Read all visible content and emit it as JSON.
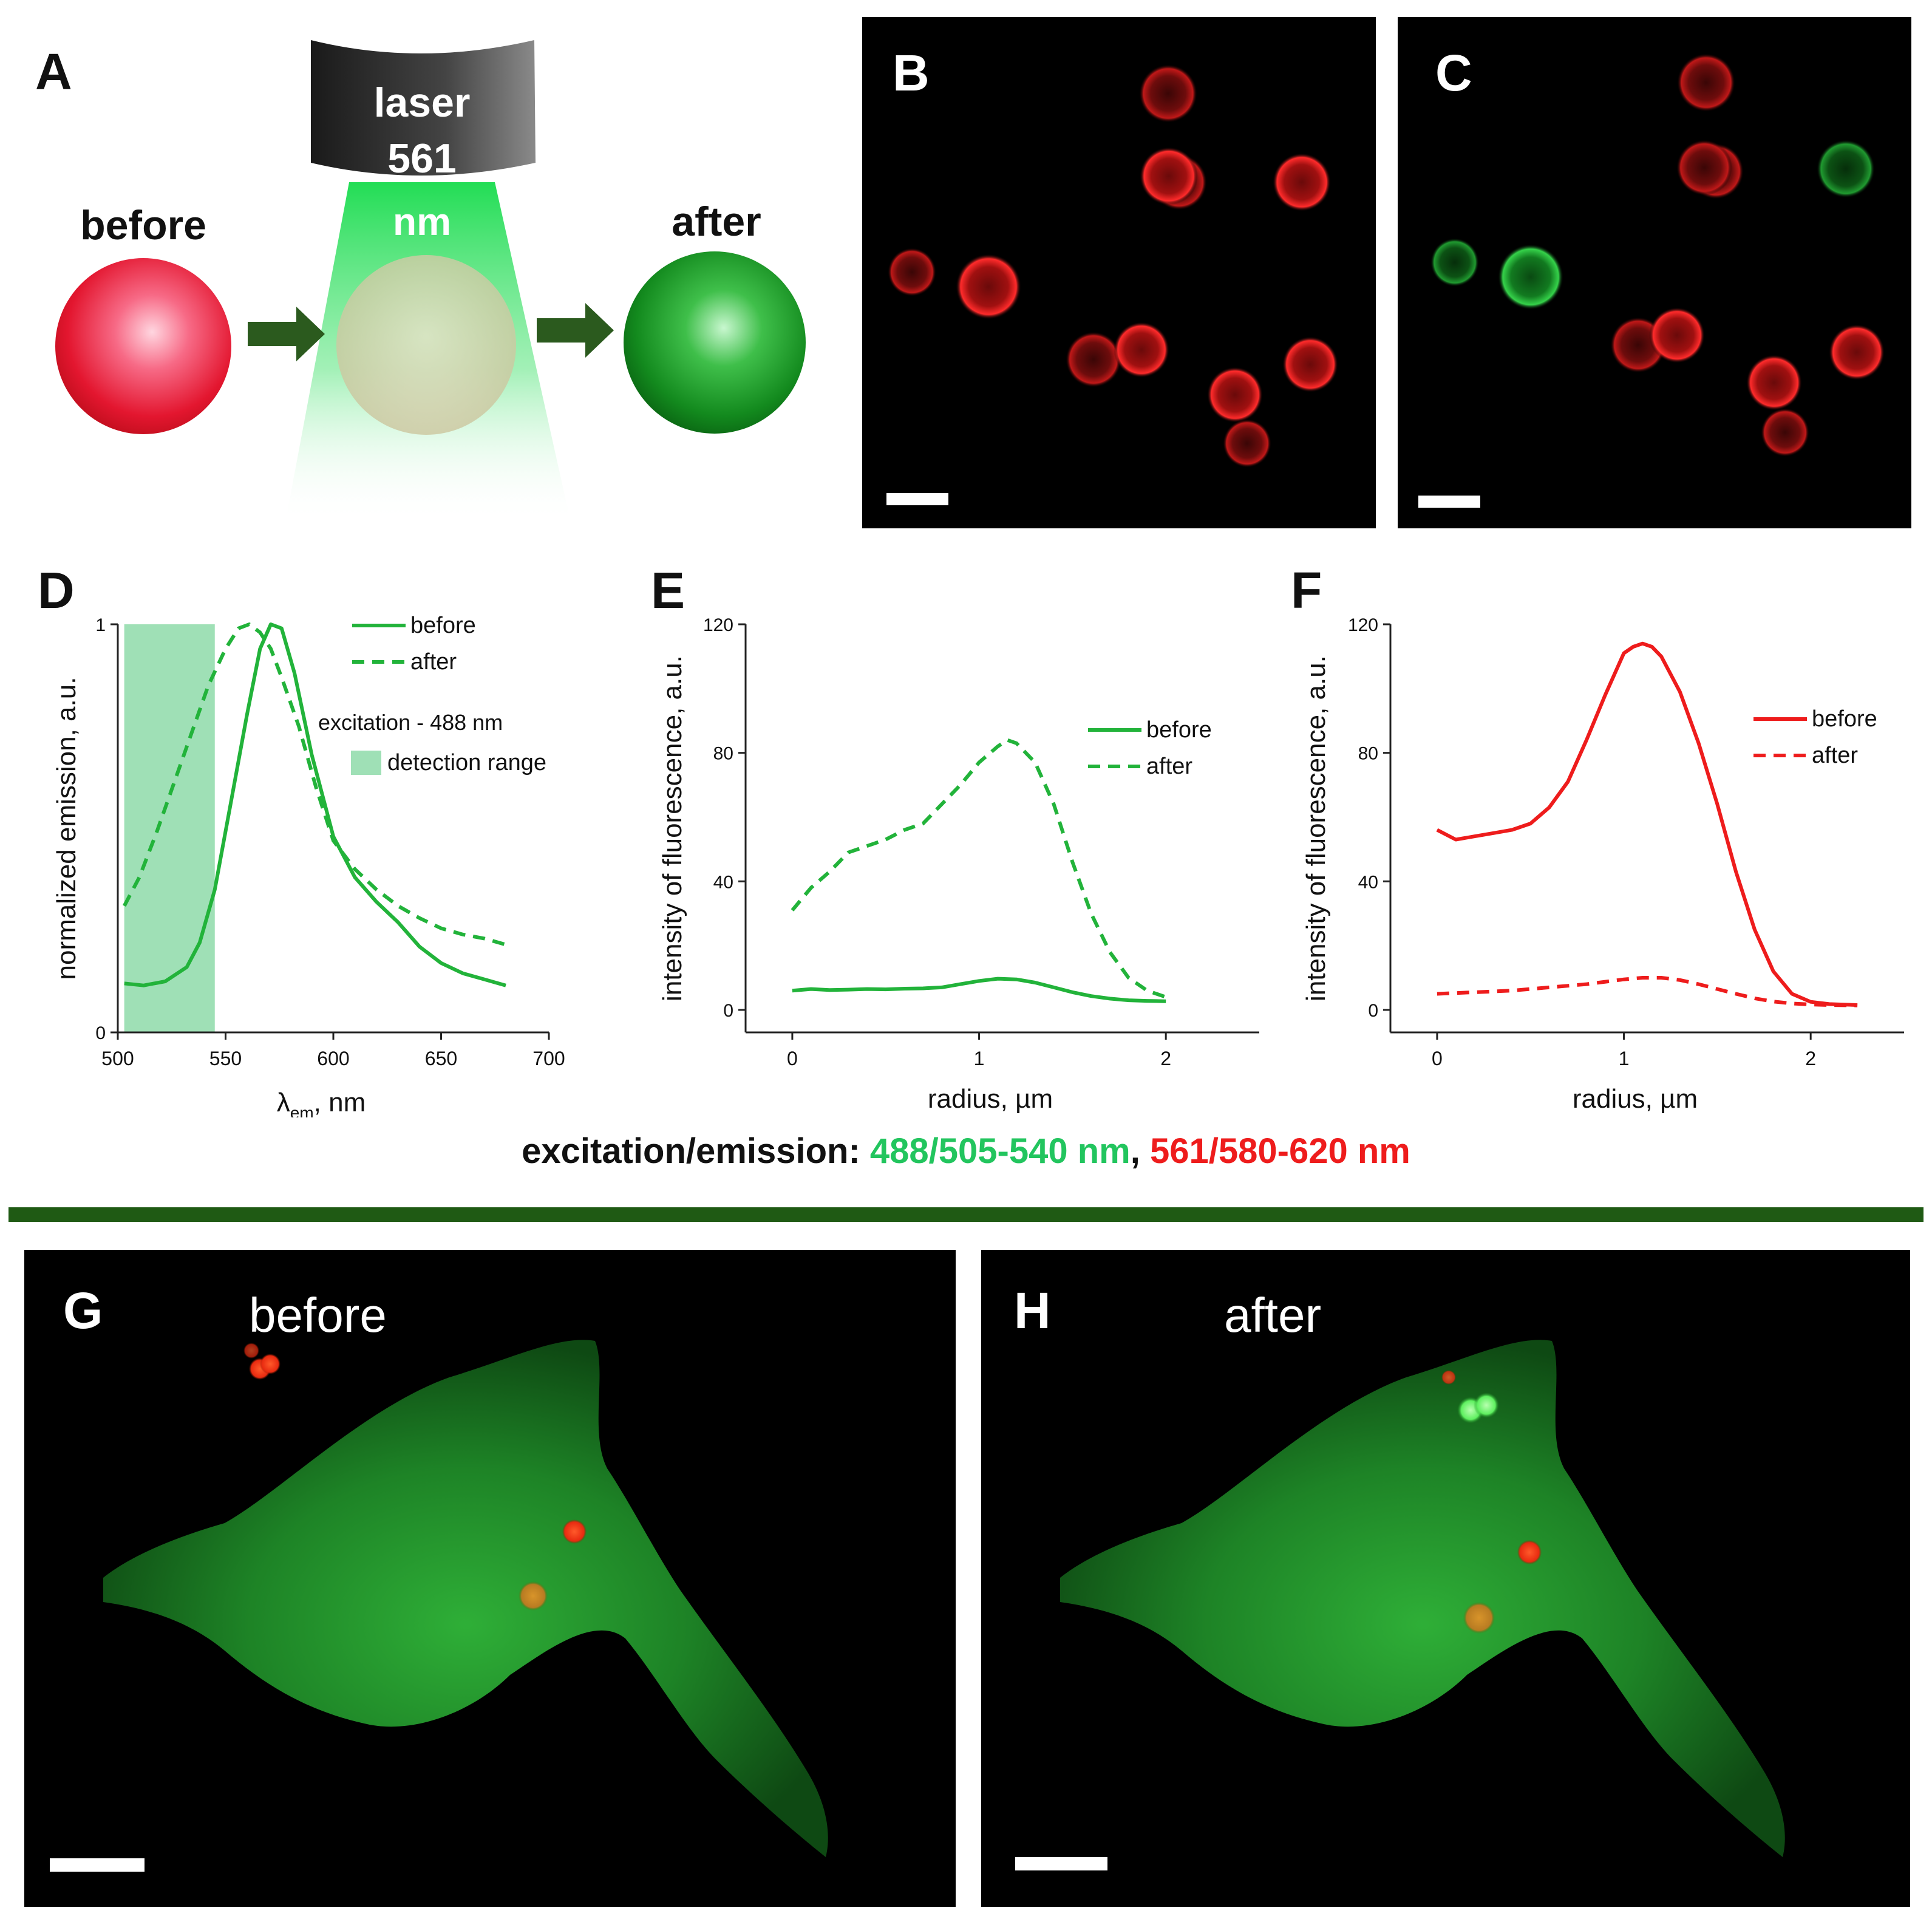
{
  "panel_a": {
    "letter": "A",
    "laser_line1": "laser",
    "laser_line2": "561",
    "laser_line3": "nm",
    "before_label": "before",
    "after_label": "after"
  },
  "panel_b": {
    "letter": "B"
  },
  "panel_c": {
    "letter": "C"
  },
  "panel_g": {
    "letter": "G",
    "label": "before"
  },
  "panel_h": {
    "letter": "H",
    "label": "after"
  },
  "caption": {
    "prefix": "excitation/emission: ",
    "green": "488/505-540 nm",
    "sep": ", ",
    "red": "561/580-620 nm"
  },
  "colors": {
    "green": "#22b33a",
    "red": "#ee1c1c",
    "band": "#9fe0b6",
    "divider": "#1f5a14"
  },
  "chart_data": [
    {
      "panel": "D",
      "type": "line",
      "xlabel_main": "λ",
      "xlabel_sub": "em",
      "xlabel_rest": ", nm",
      "ylabel": "normalized emission, a.u.",
      "xlim": [
        500,
        700
      ],
      "ylim": [
        0,
        1
      ],
      "xticks": [
        "500",
        "550",
        "600",
        "650",
        "700"
      ],
      "yticks": [
        "0",
        "1"
      ],
      "band": [
        503,
        545
      ],
      "legend": {
        "before": "before",
        "after": "after",
        "note": "excitation - 488 nm",
        "band": "detection range"
      },
      "series": [
        {
          "name": "before",
          "dash": false,
          "color": "#22b33a",
          "x": [
            503,
            512,
            522,
            532,
            538,
            545,
            552,
            560,
            566,
            571,
            576,
            582,
            590,
            600,
            610,
            620,
            630,
            640,
            650,
            660,
            670,
            680
          ],
          "y": [
            0.12,
            0.115,
            0.125,
            0.16,
            0.22,
            0.35,
            0.55,
            0.78,
            0.94,
            1.0,
            0.99,
            0.88,
            0.68,
            0.48,
            0.38,
            0.32,
            0.27,
            0.21,
            0.17,
            0.145,
            0.13,
            0.115
          ]
        },
        {
          "name": "after",
          "dash": true,
          "color": "#22b33a",
          "x": [
            503,
            510,
            518,
            526,
            534,
            542,
            550,
            556,
            561,
            566,
            571,
            576,
            584,
            592,
            600,
            610,
            620,
            630,
            640,
            650,
            660,
            670,
            680
          ],
          "y": [
            0.31,
            0.38,
            0.49,
            0.61,
            0.73,
            0.85,
            0.94,
            0.99,
            1.0,
            0.98,
            0.94,
            0.87,
            0.75,
            0.6,
            0.47,
            0.4,
            0.35,
            0.31,
            0.28,
            0.255,
            0.24,
            0.23,
            0.215
          ]
        }
      ]
    },
    {
      "panel": "E",
      "type": "line",
      "xlabel": "radius, µm",
      "ylabel": "intensity of fluorescence, a.u.",
      "xlim": [
        -0.25,
        2.5
      ],
      "ylim": [
        -7,
        120
      ],
      "xticks": [
        "0",
        "1",
        "2"
      ],
      "yticks": [
        "0",
        "40",
        "80",
        "120"
      ],
      "legend": {
        "before": "before",
        "after": "after"
      },
      "series": [
        {
          "name": "before",
          "dash": false,
          "color": "#22b33a",
          "x": [
            0,
            0.1,
            0.2,
            0.3,
            0.4,
            0.5,
            0.6,
            0.7,
            0.8,
            0.9,
            1.0,
            1.1,
            1.2,
            1.3,
            1.4,
            1.5,
            1.6,
            1.7,
            1.8,
            1.9,
            2.0
          ],
          "y": [
            6,
            6.5,
            6.2,
            6.3,
            6.5,
            6.4,
            6.6,
            6.7,
            7,
            8,
            9,
            9.7,
            9.5,
            8.5,
            7,
            5.5,
            4.3,
            3.5,
            3,
            2.8,
            2.7
          ]
        },
        {
          "name": "after",
          "dash": true,
          "color": "#22b33a",
          "x": [
            0,
            0.1,
            0.2,
            0.3,
            0.4,
            0.5,
            0.6,
            0.7,
            0.8,
            0.9,
            1.0,
            1.1,
            1.15,
            1.2,
            1.3,
            1.4,
            1.5,
            1.6,
            1.7,
            1.8,
            1.9,
            2.0
          ],
          "y": [
            31,
            38,
            43,
            49,
            51,
            53,
            56,
            58,
            64,
            70,
            77,
            82,
            84,
            83,
            77,
            64,
            46,
            30,
            18,
            10,
            6,
            4
          ]
        }
      ]
    },
    {
      "panel": "F",
      "type": "line",
      "xlabel": "radius, µm",
      "ylabel": "intensity of fluorescence, a.u.",
      "xlim": [
        -0.25,
        2.5
      ],
      "ylim": [
        -7,
        120
      ],
      "xticks": [
        "0",
        "1",
        "2"
      ],
      "yticks": [
        "0",
        "40",
        "80",
        "120"
      ],
      "legend": {
        "before": "before",
        "after": "after"
      },
      "series": [
        {
          "name": "before",
          "dash": false,
          "color": "#ee1c1c",
          "x": [
            0,
            0.1,
            0.2,
            0.3,
            0.4,
            0.5,
            0.6,
            0.7,
            0.8,
            0.9,
            1.0,
            1.05,
            1.1,
            1.15,
            1.2,
            1.3,
            1.4,
            1.5,
            1.6,
            1.7,
            1.8,
            1.9,
            2.0,
            2.1,
            2.25
          ],
          "y": [
            56,
            53,
            54,
            55,
            56,
            58,
            63,
            71,
            84,
            98,
            111,
            113,
            114,
            113,
            110,
            99,
            83,
            64,
            43,
            25,
            12,
            5,
            2.5,
            1.8,
            1.5
          ]
        },
        {
          "name": "after",
          "dash": true,
          "color": "#ee1c1c",
          "x": [
            0,
            0.2,
            0.4,
            0.6,
            0.8,
            1.0,
            1.1,
            1.2,
            1.3,
            1.4,
            1.5,
            1.6,
            1.7,
            1.8,
            1.9,
            2.0,
            2.1,
            2.25
          ],
          "y": [
            5,
            5.5,
            6,
            7,
            8,
            9.5,
            10,
            10,
            9.3,
            8,
            6.5,
            5,
            3.6,
            2.6,
            2,
            1.7,
            1.5,
            1.4
          ]
        }
      ]
    }
  ]
}
